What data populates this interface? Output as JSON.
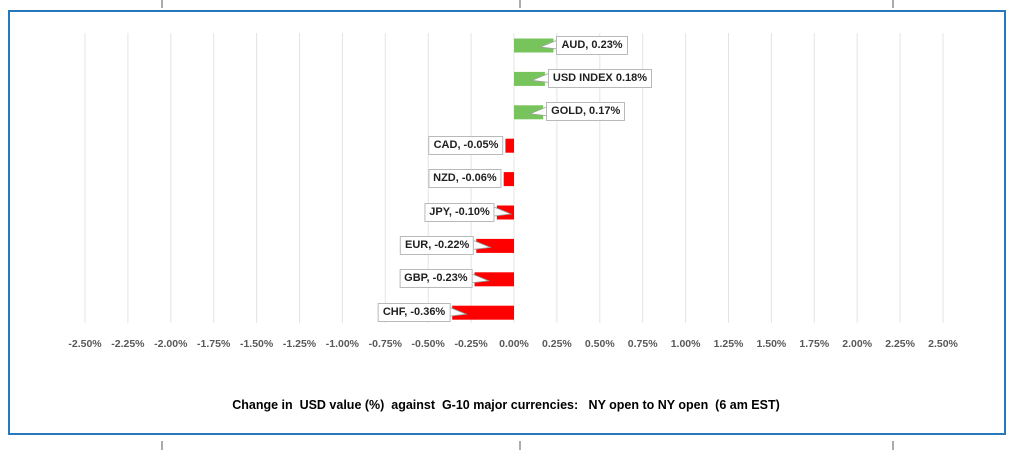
{
  "chart_data": {
    "type": "bar",
    "orientation": "horizontal",
    "title": "Change in  USD value (%)  against  G-10 major currencies:   NY open to NY open  (6 am EST)",
    "categories": [
      "AUD",
      "USD INDEX",
      "GOLD",
      "CAD",
      "NZD",
      "JPY",
      "EUR",
      "GBP",
      "CHF"
    ],
    "values": [
      0.23,
      0.18,
      0.17,
      -0.05,
      -0.06,
      -0.1,
      -0.22,
      -0.23,
      -0.36
    ],
    "data_labels": [
      "AUD, 0.23%",
      "USD INDEX 0.18%",
      "GOLD, 0.17%",
      "CAD, -0.05%",
      "NZD, -0.06%",
      "JPY, -0.10%",
      "EUR, -0.22%",
      "GBP, -0.23%",
      "CHF, -0.36%"
    ],
    "x_tick_labels": [
      "-2.50%",
      "-2.25%",
      "-2.00%",
      "-1.75%",
      "-1.50%",
      "-1.25%",
      "-1.00%",
      "-0.75%",
      "-0.50%",
      "-0.25%",
      "0.00%",
      "0.25%",
      "0.50%",
      "0.75%",
      "1.00%",
      "1.25%",
      "1.50%",
      "1.75%",
      "2.00%",
      "2.25%",
      "2.50%"
    ],
    "xlim": [
      -2.5,
      2.5
    ],
    "tick_step": 0.25,
    "grid": true,
    "legend": "none",
    "colors": {
      "positive_bar": "#77C35C",
      "negative_bar": "#FF0000",
      "gridline": "#E4E4E4",
      "tick_text": "#595959",
      "label_text": "#1F1F1F",
      "label_box_border": "#B9B9B9",
      "label_box_fill": "#FFFFFF",
      "frame_border": "#2878BE",
      "page_break_marker": "#ABABAB",
      "background": "#FFFFFF"
    }
  }
}
